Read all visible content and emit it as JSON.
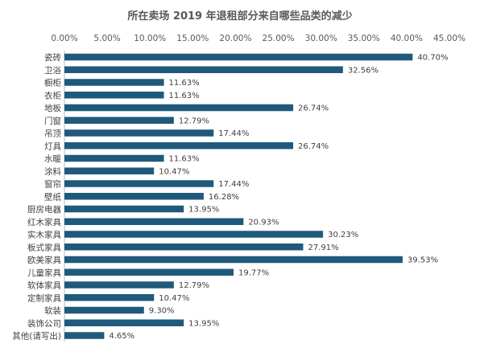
{
  "chart_data": {
    "type": "bar",
    "orientation": "horizontal",
    "title": "所在卖场 2019 年退租部分来自哪些品类的减少",
    "xlim": [
      0,
      45
    ],
    "x_ticks": [
      "0.00%",
      "5.00%",
      "10.00%",
      "15.00%",
      "20.00%",
      "25.00%",
      "30.00%",
      "35.00%",
      "40.00%",
      "45.00%"
    ],
    "x_tick_values": [
      0,
      5,
      10,
      15,
      20,
      25,
      30,
      35,
      40,
      45
    ],
    "x_axis_position": "top",
    "grid": false,
    "bar_color": "#1f5a7c",
    "categories": [
      "瓷砖",
      "卫浴",
      "橱柜",
      "衣柜",
      "地板",
      "门窗",
      "吊顶",
      "灯具",
      "水暖",
      "涂料",
      "窗帘",
      "壁纸",
      "厨房电器",
      "红木家具",
      "实木家具",
      "板式家具",
      "欧美家具",
      "儿童家具",
      "软体家具",
      "定制家具",
      "软装",
      "装饰公司",
      "其他(请写出)"
    ],
    "values": [
      40.7,
      32.56,
      11.63,
      11.63,
      26.74,
      12.79,
      17.44,
      26.74,
      11.63,
      10.47,
      17.44,
      16.28,
      13.95,
      20.93,
      30.23,
      27.91,
      39.53,
      19.77,
      12.79,
      10.47,
      9.3,
      13.95,
      4.65
    ],
    "value_labels": [
      "40.70%",
      "32.56%",
      "11.63%",
      "11.63%",
      "26.74%",
      "12.79%",
      "17.44%",
      "26.74%",
      "11.63%",
      "10.47%",
      "17.44%",
      "16.28%",
      "13.95%",
      "20.93%",
      "30.23%",
      "27.91%",
      "39.53%",
      "19.77%",
      "12.79%",
      "10.47%",
      "9.30%",
      "13.95%",
      "4.65%"
    ]
  }
}
